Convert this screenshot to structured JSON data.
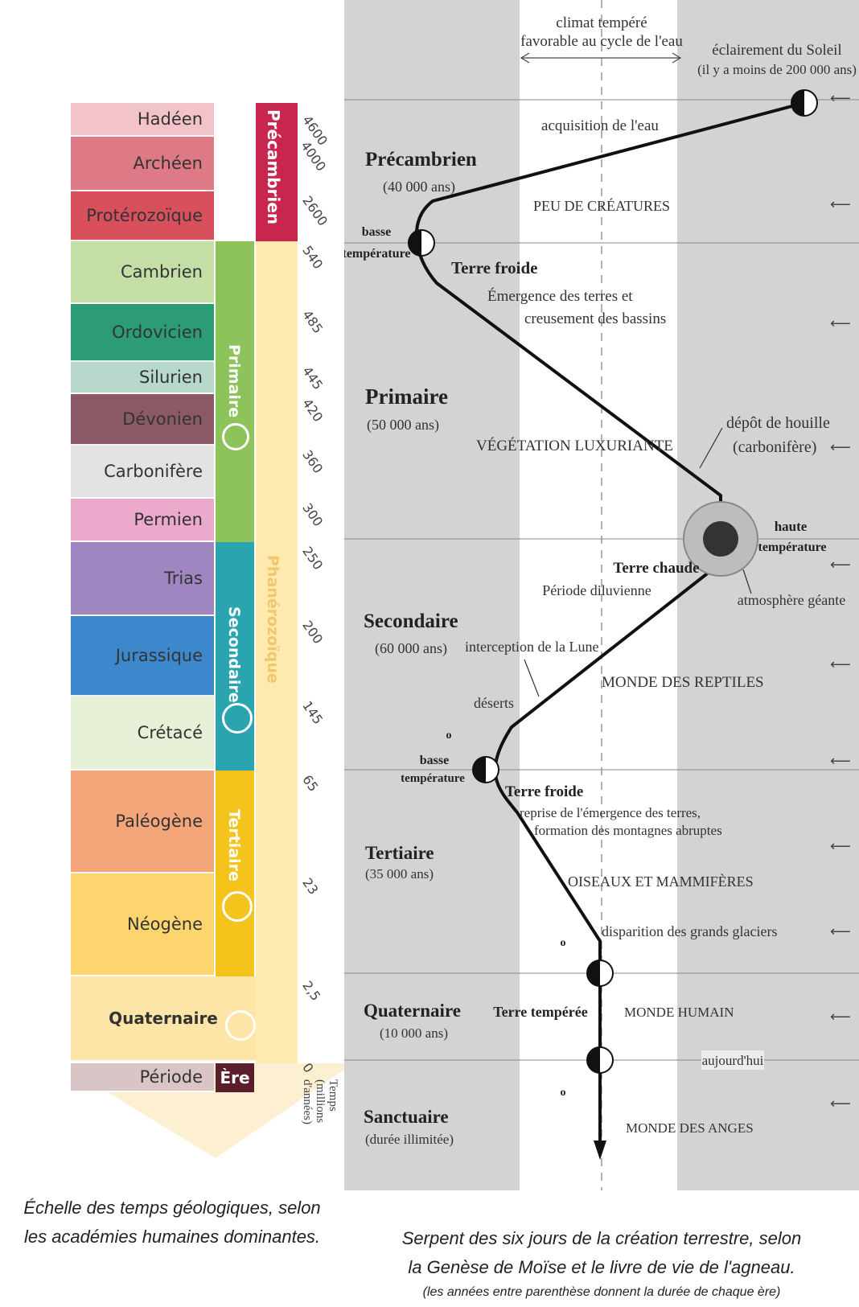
{
  "left_scale": {
    "periods": [
      {
        "name": "Hadéen",
        "color": "#f2c4c9"
      },
      {
        "name": "Archéen",
        "color": "#de7a86"
      },
      {
        "name": "Protérozoïque",
        "color": "#d9505d"
      },
      {
        "name": "Cambrien",
        "color": "#c4dfa6"
      },
      {
        "name": "Ordovicien",
        "color": "#2b9c75"
      },
      {
        "name": "Silurien",
        "color": "#b7d8cb"
      },
      {
        "name": "Dévonien",
        "color": "#8b5a66"
      },
      {
        "name": "Carbonifère",
        "color": "#e3e3e3"
      },
      {
        "name": "Permien",
        "color": "#eba9cc"
      },
      {
        "name": "Trias",
        "color": "#9f86c0"
      },
      {
        "name": "Jurassique",
        "color": "#3d88cc"
      },
      {
        "name": "Crétacé",
        "color": "#e6f0d6"
      },
      {
        "name": "Paléogène",
        "color": "#f4a67a"
      },
      {
        "name": "Néogène",
        "color": "#fcd56e"
      },
      {
        "name": "Quaternaire",
        "color": "#fde5a8"
      },
      {
        "name": "Période",
        "color": "#d9c5c5"
      }
    ],
    "eras": {
      "precambrien": "Précambrien",
      "primaire": "Primaire",
      "secondaire": "Secondaire",
      "tertiaire": "Tertiaire",
      "phanerozoique": "Phanérozoïque",
      "ere": "Ère"
    },
    "ticks": [
      "4600",
      "4000",
      "2600",
      "540",
      "485",
      "445",
      "420",
      "360",
      "300",
      "250",
      "200",
      "145",
      "65",
      "23",
      "2,5",
      "0"
    ],
    "time_axis_label": [
      "Temps",
      "(millions",
      "d'années)"
    ],
    "colors": {
      "precambrien": "#c8264e",
      "primaire": "#8cc35a",
      "secondaire": "#2aa5b0",
      "tertiaire": "#f4c41c",
      "phanerozoique": "#fee9ae",
      "ere": "#5b1f2c"
    }
  },
  "right_diagram": {
    "climate_label": [
      "climat tempéré",
      "favorable au cycle de l'eau"
    ],
    "sun_label": [
      "éclairement du Soleil",
      "(il y a moins de 200 000 ans)"
    ],
    "acquisition": "acquisition de l'eau",
    "eras": [
      {
        "name": "Précambrien",
        "duration": "(40 000 ans)"
      },
      {
        "name": "Primaire",
        "duration": "(50 000 ans)"
      },
      {
        "name": "Secondaire",
        "duration": "(60 000 ans)"
      },
      {
        "name": "Tertiaire",
        "duration": "(35 000 ans)"
      },
      {
        "name": "Quaternaire",
        "duration": "(10 000 ans)"
      },
      {
        "name": "Sanctuaire",
        "duration": "(durée illimitée)"
      }
    ],
    "peu_creatures": "PEU DE CRÉATURES",
    "basse1": [
      "basse",
      "température"
    ],
    "terre_froide1": "Terre froide",
    "emergence": [
      "Émergence des terres et",
      "creusement des bassins"
    ],
    "vegetation": "VÉGÉTATION LUXURIANTE",
    "houille": [
      "dépôt de houille",
      "(carbonifère)"
    ],
    "haute": [
      "haute",
      "température"
    ],
    "terre_chaude": "Terre chaude",
    "diluvienne": "Période diluvienne",
    "atmosphere": "atmosphère géante",
    "lune": "interception de la Lune",
    "reptiles": "MONDE DES REPTILES",
    "deserts": "déserts",
    "small_o": "o",
    "basse2": [
      "basse",
      "température"
    ],
    "terre_froide2": "Terre froide",
    "reprise": [
      "reprise de l'émergence des terres,",
      "formation des montagnes abruptes"
    ],
    "oiseaux": "OISEAUX ET MAMMIFÈRES",
    "glaciers": "disparition des grands glaciers",
    "terre_temperee": "Terre tempérée",
    "humain": "MONDE HUMAIN",
    "aujourdhui": "aujourd'hui",
    "anges": "MONDE DES ANGES",
    "arrow_glyph": "⟵"
  },
  "captions": {
    "left": [
      "Échelle des temps géologiques, selon",
      "les académies humaines dominantes."
    ],
    "right": [
      "Serpent des six jours de la création terrestre, selon",
      "la Genèse de Moïse et le livre de vie de l'agneau."
    ],
    "note": "(les années entre parenthèse donnent la durée de chaque ère)"
  }
}
